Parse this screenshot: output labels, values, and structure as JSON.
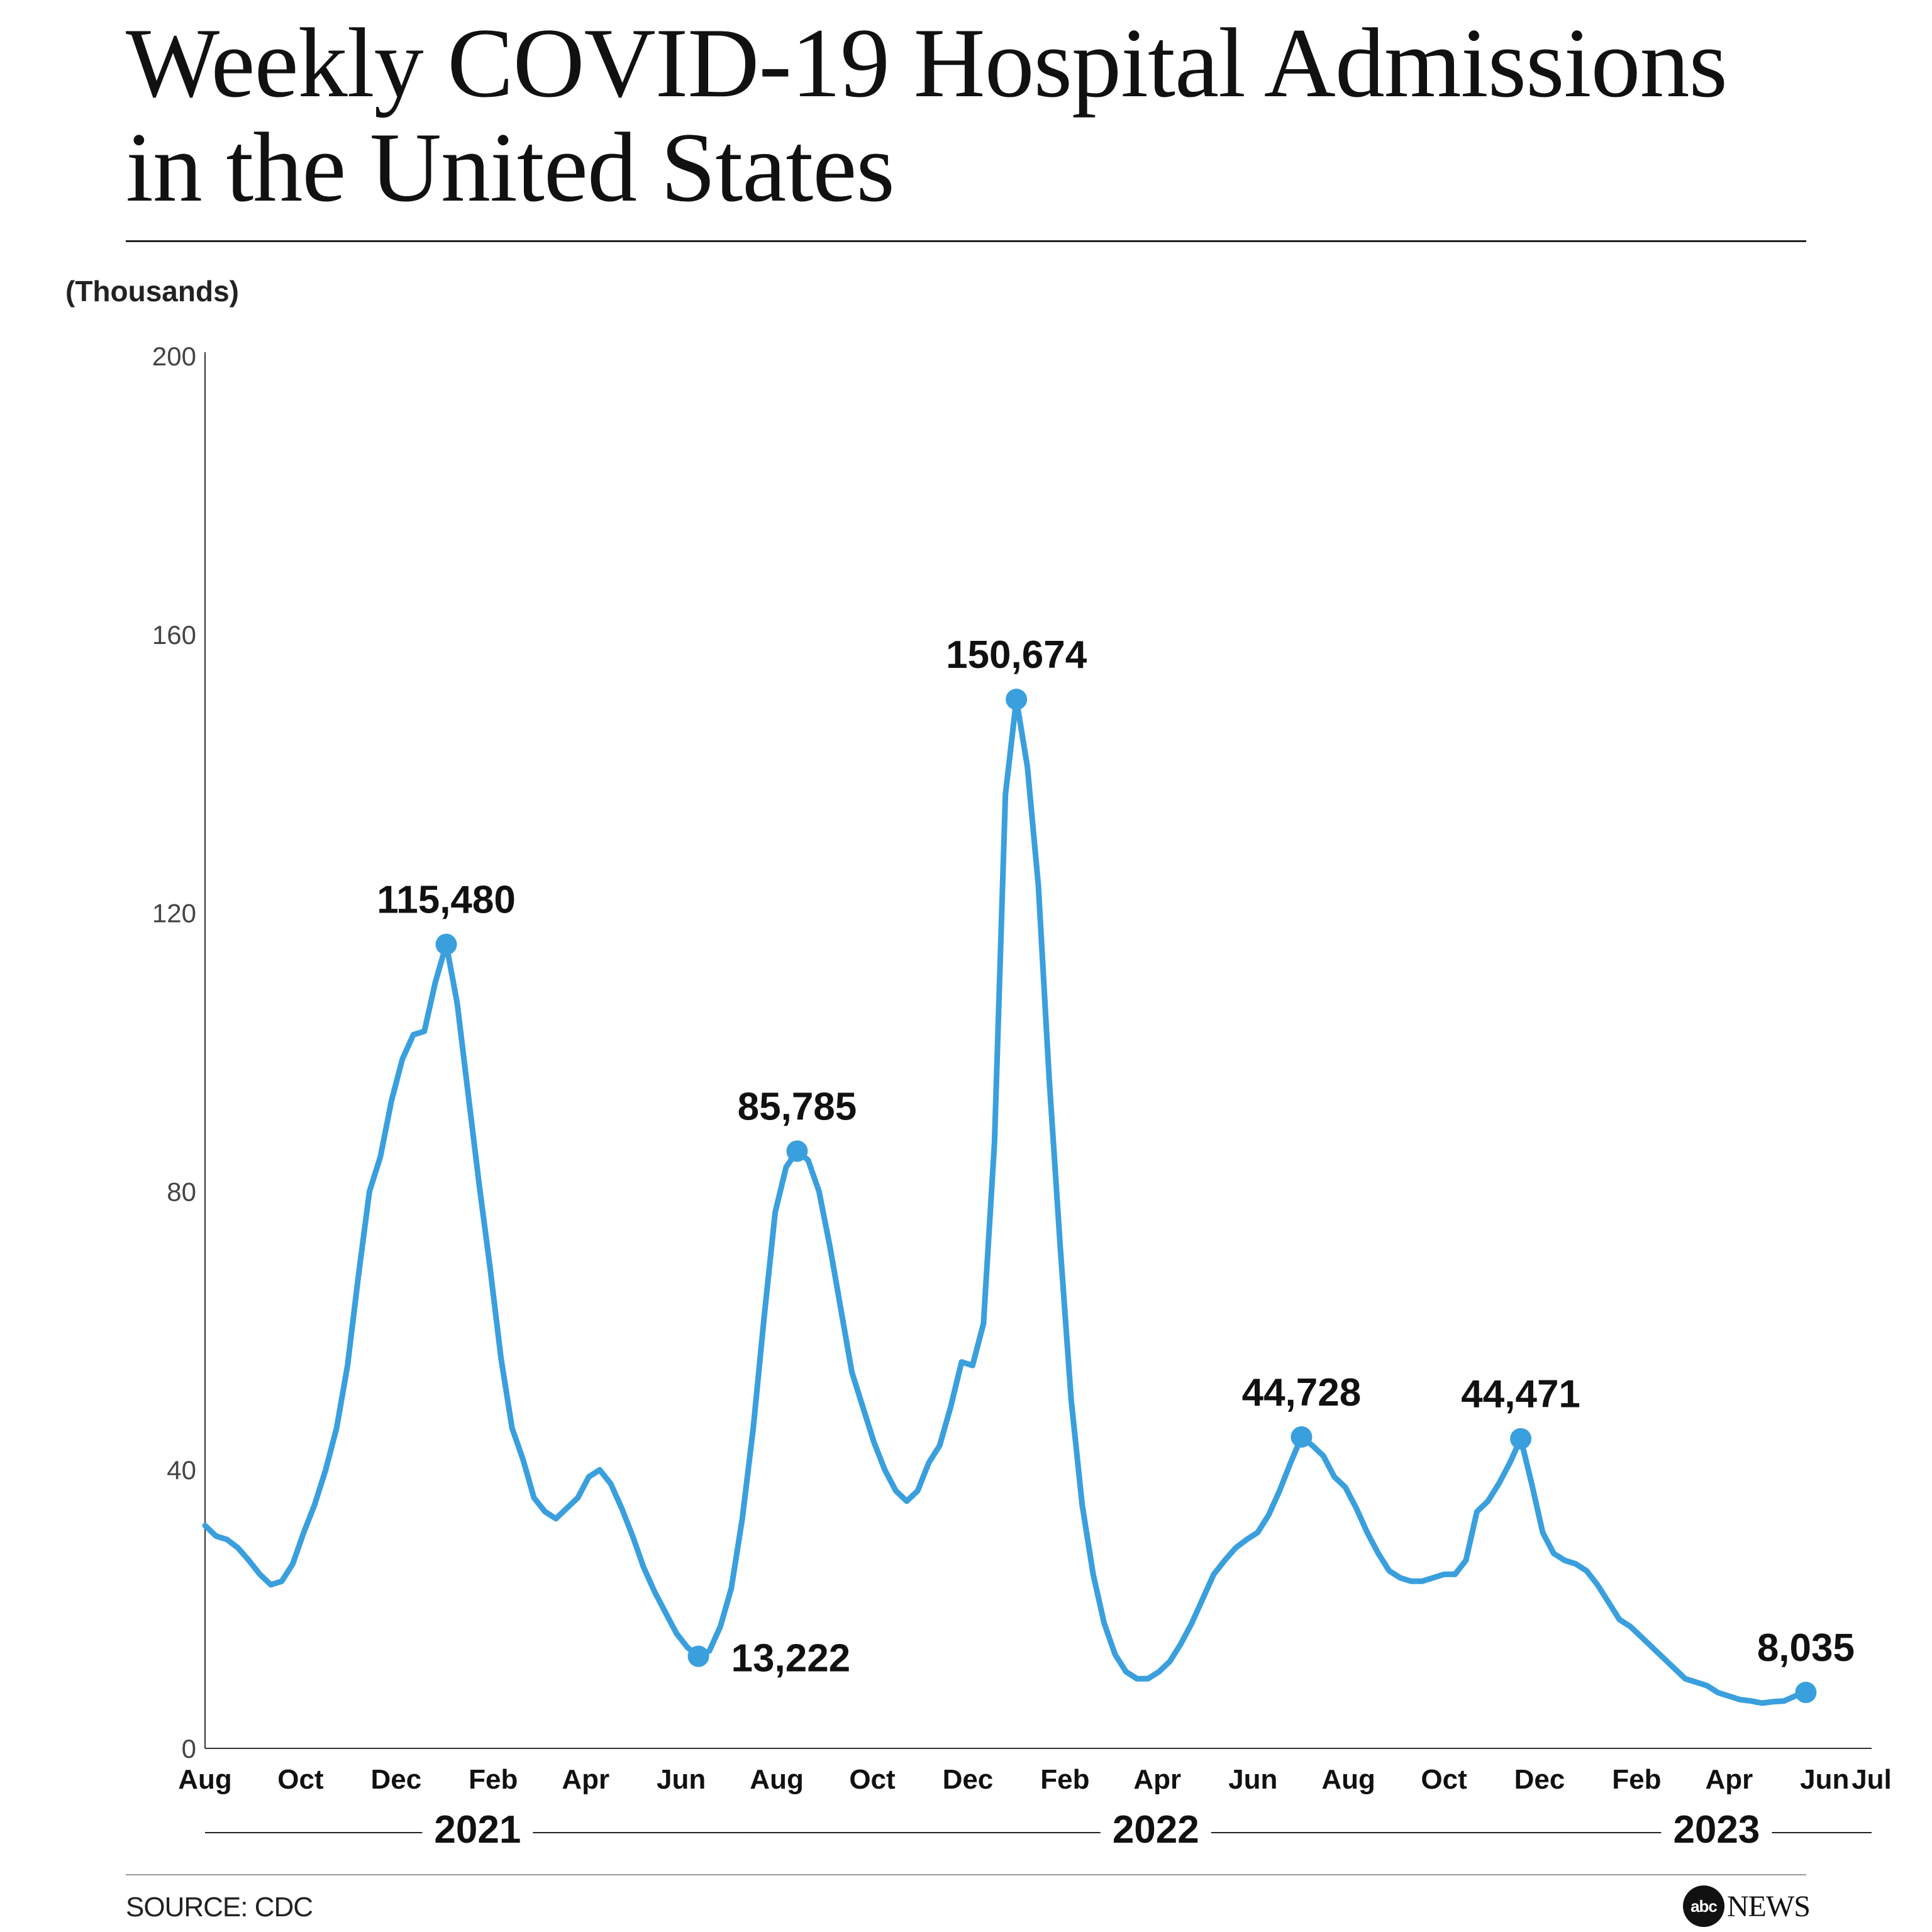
{
  "header": {
    "title_line1": "Weekly COVID-19 Hospital Admissions",
    "title_line2": "in the United States"
  },
  "footer": {
    "source": "SOURCE: CDC",
    "logo_disc": "abc",
    "logo_text": "NEWS"
  },
  "colors": {
    "line": "#3a9fdd",
    "axis": "#333333",
    "text": "#111111"
  },
  "chart_data": {
    "type": "line",
    "title": "Weekly COVID-19 Hospital Admissions in the United States",
    "ylabel": "(Thousands)",
    "ylim": [
      0,
      200
    ],
    "yticks": [
      0,
      40,
      80,
      120,
      160,
      200
    ],
    "grid": false,
    "month_labels": [
      "Aug",
      "Oct",
      "Dec",
      "Feb",
      "Apr",
      "Jun",
      "Aug",
      "Oct",
      "Dec",
      "Feb",
      "Apr",
      "Jun",
      "Aug",
      "Oct",
      "Dec",
      "Feb",
      "Apr",
      "Jun",
      "Jul"
    ],
    "month_dates": [
      "2020-08-01",
      "2020-10-01",
      "2020-12-01",
      "2021-02-01",
      "2021-04-01",
      "2021-06-01",
      "2021-08-01",
      "2021-10-01",
      "2021-12-01",
      "2022-02-01",
      "2022-04-01",
      "2022-06-01",
      "2022-08-01",
      "2022-10-01",
      "2022-12-01",
      "2023-02-01",
      "2023-04-01",
      "2023-06-01",
      "2023-07-01"
    ],
    "year_labels": [
      {
        "label": "2021",
        "from": "2020-08-01",
        "to": "2021-07-15"
      },
      {
        "label": "2022",
        "from": "2021-07-15",
        "to": "2022-12-15"
      },
      {
        "label": "2023",
        "from": "2022-12-15",
        "to": "2023-07-01"
      }
    ],
    "series": [
      {
        "points": [
          [
            "2020-08-01",
            32.0
          ],
          [
            "2020-08-08",
            30.5
          ],
          [
            "2020-08-15",
            30.0
          ],
          [
            "2020-08-22",
            28.8
          ],
          [
            "2020-08-29",
            27.0
          ],
          [
            "2020-09-05",
            25.0
          ],
          [
            "2020-09-12",
            23.5
          ],
          [
            "2020-09-19",
            24.0
          ],
          [
            "2020-09-26",
            26.5
          ],
          [
            "2020-10-03",
            31.0
          ],
          [
            "2020-10-10",
            35.0
          ],
          [
            "2020-10-17",
            40.0
          ],
          [
            "2020-10-24",
            46.0
          ],
          [
            "2020-10-31",
            55.0
          ],
          [
            "2020-11-07",
            68.0
          ],
          [
            "2020-11-14",
            80.0
          ],
          [
            "2020-11-21",
            85.0
          ],
          [
            "2020-11-28",
            93.0
          ],
          [
            "2020-12-05",
            99.0
          ],
          [
            "2020-12-12",
            102.5
          ],
          [
            "2020-12-19",
            103.0
          ],
          [
            "2020-12-26",
            110.0
          ],
          [
            "2021-01-02",
            115.48
          ],
          [
            "2021-01-09",
            107.0
          ],
          [
            "2021-01-16",
            94.0
          ],
          [
            "2021-01-23",
            81.0
          ],
          [
            "2021-01-30",
            69.0
          ],
          [
            "2021-02-06",
            56.0
          ],
          [
            "2021-02-13",
            46.0
          ],
          [
            "2021-02-20",
            41.5
          ],
          [
            "2021-02-27",
            36.0
          ],
          [
            "2021-03-06",
            34.0
          ],
          [
            "2021-03-13",
            33.0
          ],
          [
            "2021-03-20",
            34.5
          ],
          [
            "2021-03-27",
            36.0
          ],
          [
            "2021-04-03",
            39.0
          ],
          [
            "2021-04-10",
            40.0
          ],
          [
            "2021-04-17",
            38.0
          ],
          [
            "2021-04-24",
            34.5
          ],
          [
            "2021-05-01",
            30.5
          ],
          [
            "2021-05-08",
            26.0
          ],
          [
            "2021-05-15",
            22.5
          ],
          [
            "2021-05-22",
            19.5
          ],
          [
            "2021-05-29",
            16.5
          ],
          [
            "2021-06-05",
            14.5
          ],
          [
            "2021-06-12",
            13.222
          ],
          [
            "2021-06-19",
            14.0
          ],
          [
            "2021-06-26",
            17.5
          ],
          [
            "2021-07-03",
            23.0
          ],
          [
            "2021-07-10",
            33.0
          ],
          [
            "2021-07-17",
            46.0
          ],
          [
            "2021-07-24",
            62.0
          ],
          [
            "2021-07-31",
            77.0
          ],
          [
            "2021-08-07",
            83.5
          ],
          [
            "2021-08-14",
            85.785
          ],
          [
            "2021-08-21",
            84.5
          ],
          [
            "2021-08-28",
            80.0
          ],
          [
            "2021-09-04",
            72.0
          ],
          [
            "2021-09-11",
            63.0
          ],
          [
            "2021-09-18",
            54.0
          ],
          [
            "2021-09-25",
            49.0
          ],
          [
            "2021-10-02",
            44.0
          ],
          [
            "2021-10-09",
            40.0
          ],
          [
            "2021-10-16",
            37.0
          ],
          [
            "2021-10-23",
            35.5
          ],
          [
            "2021-10-30",
            37.0
          ],
          [
            "2021-11-06",
            41.0
          ],
          [
            "2021-11-13",
            43.5
          ],
          [
            "2021-11-20",
            49.0
          ],
          [
            "2021-11-27",
            55.5
          ],
          [
            "2021-12-04",
            55.0
          ],
          [
            "2021-12-11",
            61.0
          ],
          [
            "2021-12-18",
            87.0
          ],
          [
            "2021-12-25",
            137.0
          ],
          [
            "2022-01-01",
            150.674
          ],
          [
            "2022-01-08",
            141.0
          ],
          [
            "2022-01-15",
            124.0
          ],
          [
            "2022-01-22",
            96.0
          ],
          [
            "2022-01-29",
            72.0
          ],
          [
            "2022-02-05",
            50.0
          ],
          [
            "2022-02-12",
            35.0
          ],
          [
            "2022-02-19",
            25.0
          ],
          [
            "2022-02-26",
            18.0
          ],
          [
            "2022-03-05",
            13.5
          ],
          [
            "2022-03-12",
            11.0
          ],
          [
            "2022-03-19",
            10.0
          ],
          [
            "2022-03-26",
            10.0
          ],
          [
            "2022-04-02",
            11.0
          ],
          [
            "2022-04-09",
            12.5
          ],
          [
            "2022-04-16",
            15.0
          ],
          [
            "2022-04-23",
            18.0
          ],
          [
            "2022-04-30",
            21.5
          ],
          [
            "2022-05-07",
            25.0
          ],
          [
            "2022-05-14",
            27.0
          ],
          [
            "2022-05-21",
            28.8
          ],
          [
            "2022-05-28",
            30.0
          ],
          [
            "2022-06-04",
            31.0
          ],
          [
            "2022-06-11",
            33.5
          ],
          [
            "2022-06-18",
            37.0
          ],
          [
            "2022-06-25",
            41.0
          ],
          [
            "2022-07-02",
            44.728
          ],
          [
            "2022-07-09",
            43.5
          ],
          [
            "2022-07-16",
            42.0
          ],
          [
            "2022-07-23",
            39.0
          ],
          [
            "2022-07-30",
            37.5
          ],
          [
            "2022-08-06",
            34.5
          ],
          [
            "2022-08-13",
            31.0
          ],
          [
            "2022-08-20",
            28.0
          ],
          [
            "2022-08-27",
            25.5
          ],
          [
            "2022-09-03",
            24.5
          ],
          [
            "2022-09-10",
            24.0
          ],
          [
            "2022-09-17",
            24.0
          ],
          [
            "2022-09-24",
            24.5
          ],
          [
            "2022-10-01",
            25.0
          ],
          [
            "2022-10-08",
            25.0
          ],
          [
            "2022-10-15",
            27.0
          ],
          [
            "2022-10-22",
            34.0
          ],
          [
            "2022-10-29",
            35.5
          ],
          [
            "2022-11-05",
            38.0
          ],
          [
            "2022-11-12",
            41.0
          ],
          [
            "2022-11-19",
            44.471
          ],
          [
            "2022-11-26",
            38.0
          ],
          [
            "2022-12-03",
            31.0
          ],
          [
            "2022-12-10",
            28.0
          ],
          [
            "2022-12-17",
            27.0
          ],
          [
            "2022-12-24",
            26.5
          ],
          [
            "2022-12-31",
            25.5
          ],
          [
            "2023-01-07",
            23.5
          ],
          [
            "2023-01-14",
            21.0
          ],
          [
            "2023-01-21",
            18.5
          ],
          [
            "2023-01-28",
            17.5
          ],
          [
            "2023-02-04",
            16.0
          ],
          [
            "2023-02-11",
            14.5
          ],
          [
            "2023-02-18",
            13.0
          ],
          [
            "2023-02-25",
            11.5
          ],
          [
            "2023-03-04",
            10.0
          ],
          [
            "2023-03-11",
            9.5
          ],
          [
            "2023-03-18",
            9.0
          ],
          [
            "2023-03-25",
            8.0
          ],
          [
            "2023-04-01",
            7.5
          ],
          [
            "2023-04-08",
            7.0
          ],
          [
            "2023-04-15",
            6.8
          ],
          [
            "2023-04-22",
            6.5
          ],
          [
            "2023-04-29",
            6.7
          ],
          [
            "2023-05-06",
            6.8
          ],
          [
            "2023-05-13",
            7.5
          ],
          [
            "2023-05-20",
            8.035
          ]
        ]
      }
    ],
    "annotations": [
      {
        "date": "2021-01-02",
        "value": 115.48,
        "label": "115,480",
        "position": "above"
      },
      {
        "date": "2021-06-12",
        "value": 13.222,
        "label": "13,222",
        "position": "right"
      },
      {
        "date": "2021-08-14",
        "value": 85.785,
        "label": "85,785",
        "position": "above"
      },
      {
        "date": "2022-01-01",
        "value": 150.674,
        "label": "150,674",
        "position": "above"
      },
      {
        "date": "2022-07-02",
        "value": 44.728,
        "label": "44,728",
        "position": "above"
      },
      {
        "date": "2022-11-19",
        "value": 44.471,
        "label": "44,471",
        "position": "above"
      },
      {
        "date": "2023-05-20",
        "value": 8.035,
        "label": "8,035",
        "position": "above"
      }
    ]
  }
}
